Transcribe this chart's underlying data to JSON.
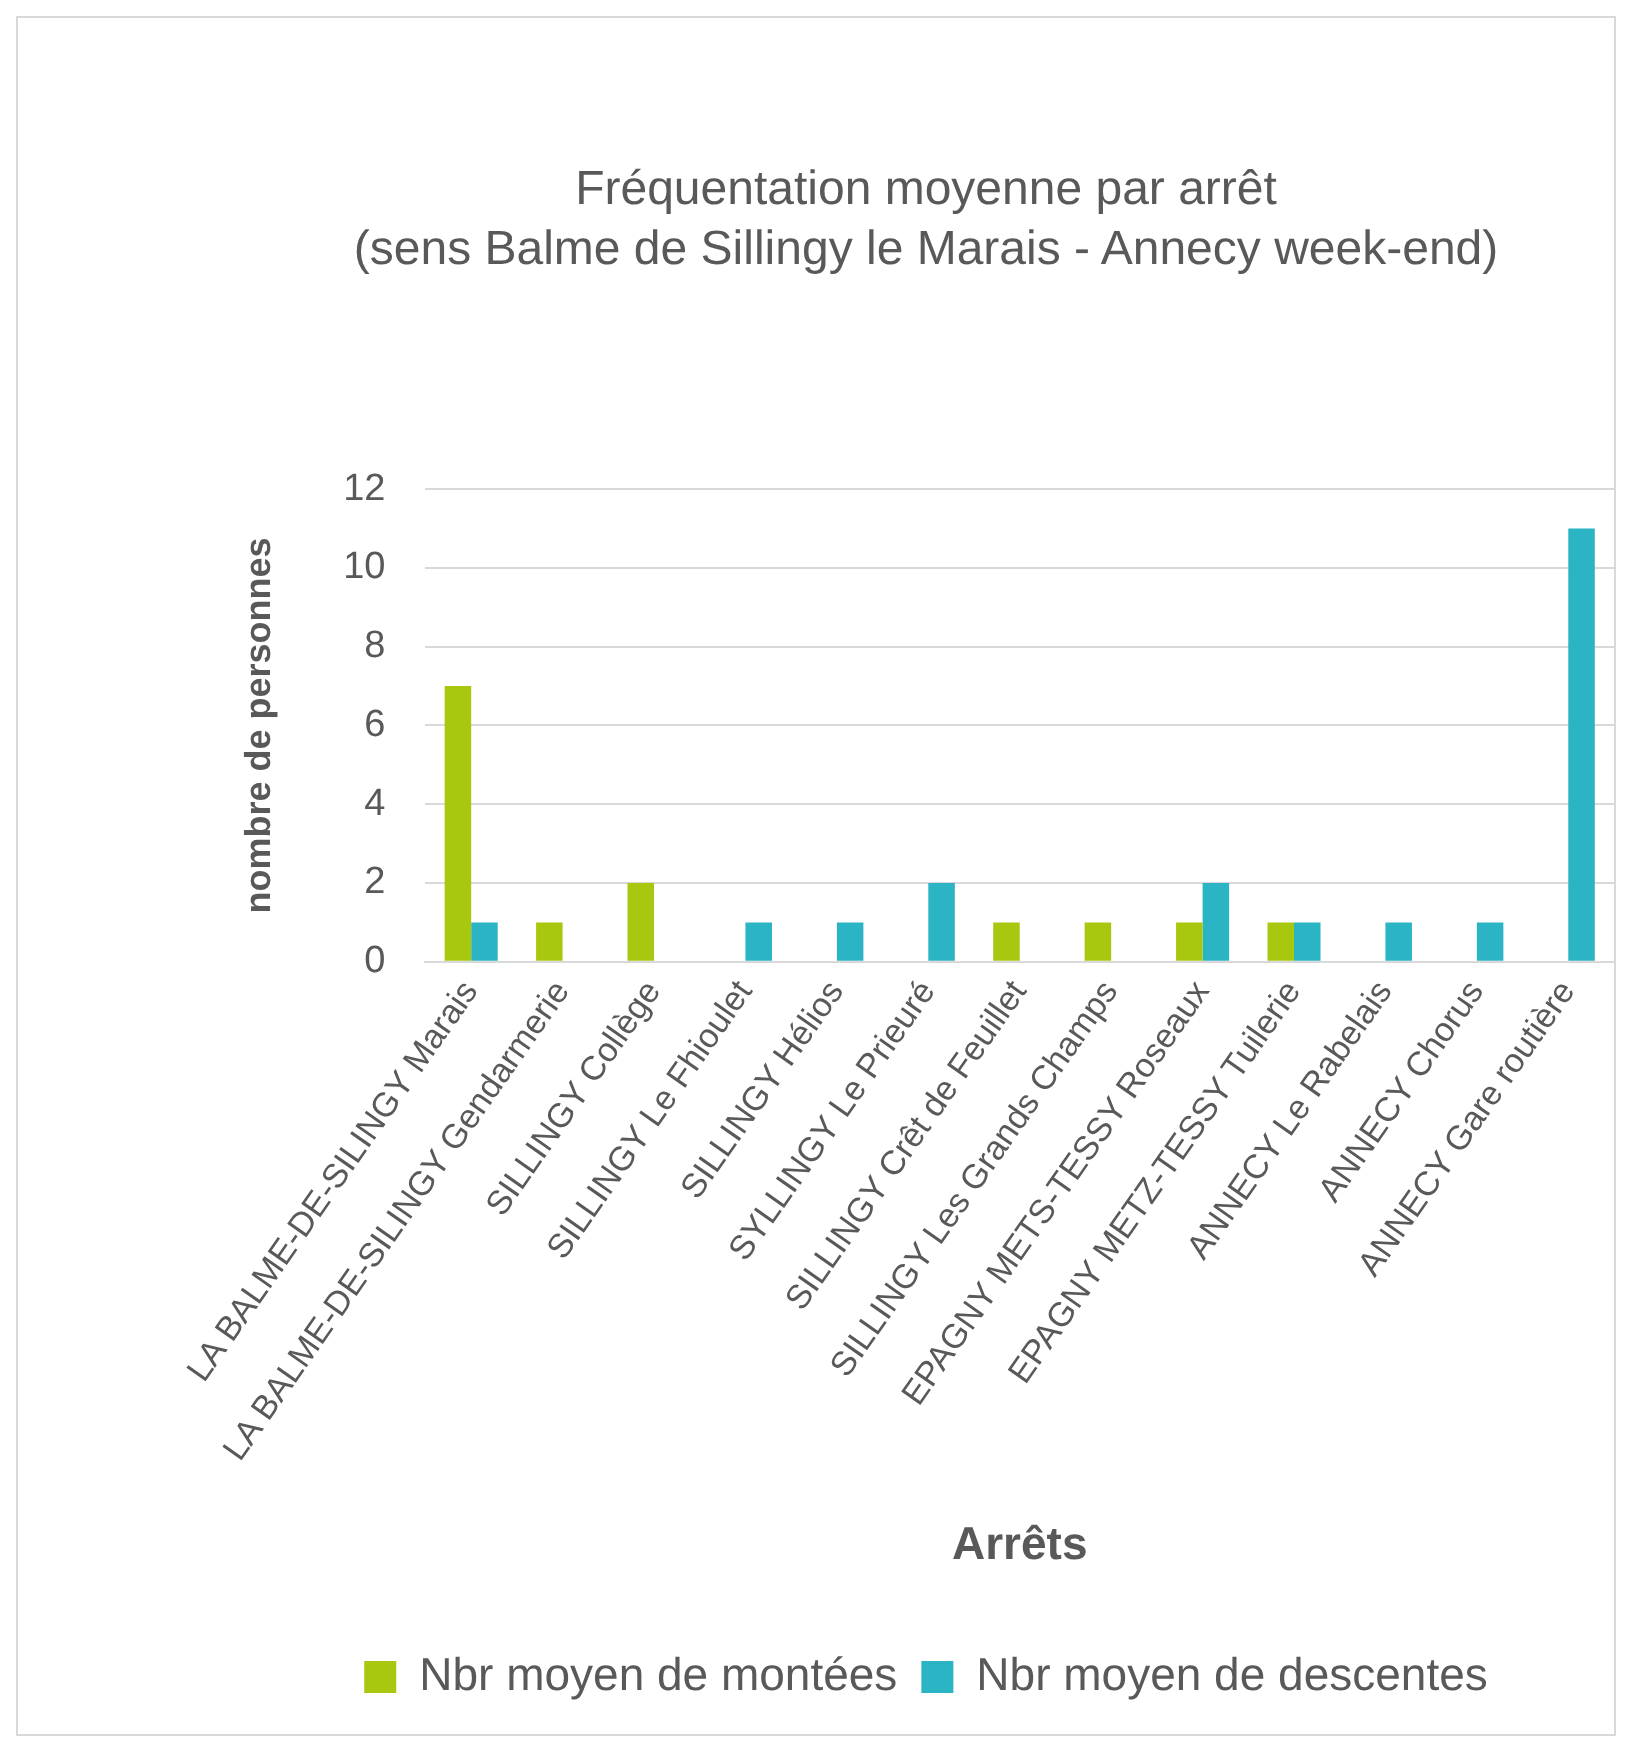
{
  "chart_data": {
    "type": "bar",
    "title": "Fréquentation moyenne par arrêt",
    "subtitle": "(sens Balme de Sillingy le Marais - Annecy week-end)",
    "xlabel": "Arrêts",
    "ylabel": "nombre de personnes",
    "categories": [
      "LA BALME-DE-SILINGY Marais",
      "LA BALME-DE-SILINGY Gendarmerie",
      "SILLINGY Collège",
      "SILLINGY Le Fhioulet",
      "SILLINGY Hélios",
      "SYLLINGY Le Prieuré",
      "SILLINGY Crêt de Feuillet",
      "SILLINGY Les Grands Champs",
      "EPAGNY METS-TESSY Roseaux",
      "EPAGNY METZ-TESSY Tuilerie",
      "ANNECY Le Rabelais",
      "ANNECY Chorus",
      "ANNECY Gare routière"
    ],
    "series": [
      {
        "name": "Nbr moyen de montées",
        "color": "#a8c70f",
        "values": [
          7,
          1,
          2,
          0,
          0,
          0,
          1,
          1,
          1,
          1,
          0,
          0,
          0
        ]
      },
      {
        "name": "Nbr moyen de descentes",
        "color": "#2bb4c3",
        "values": [
          1,
          0,
          0,
          1,
          1,
          2,
          0,
          0,
          2,
          1,
          1,
          1,
          11
        ]
      }
    ],
    "ylim": [
      0,
      12
    ],
    "yticks": [
      0,
      2,
      4,
      6,
      8,
      10,
      12
    ],
    "grid": "y",
    "legend": "bottom"
  }
}
